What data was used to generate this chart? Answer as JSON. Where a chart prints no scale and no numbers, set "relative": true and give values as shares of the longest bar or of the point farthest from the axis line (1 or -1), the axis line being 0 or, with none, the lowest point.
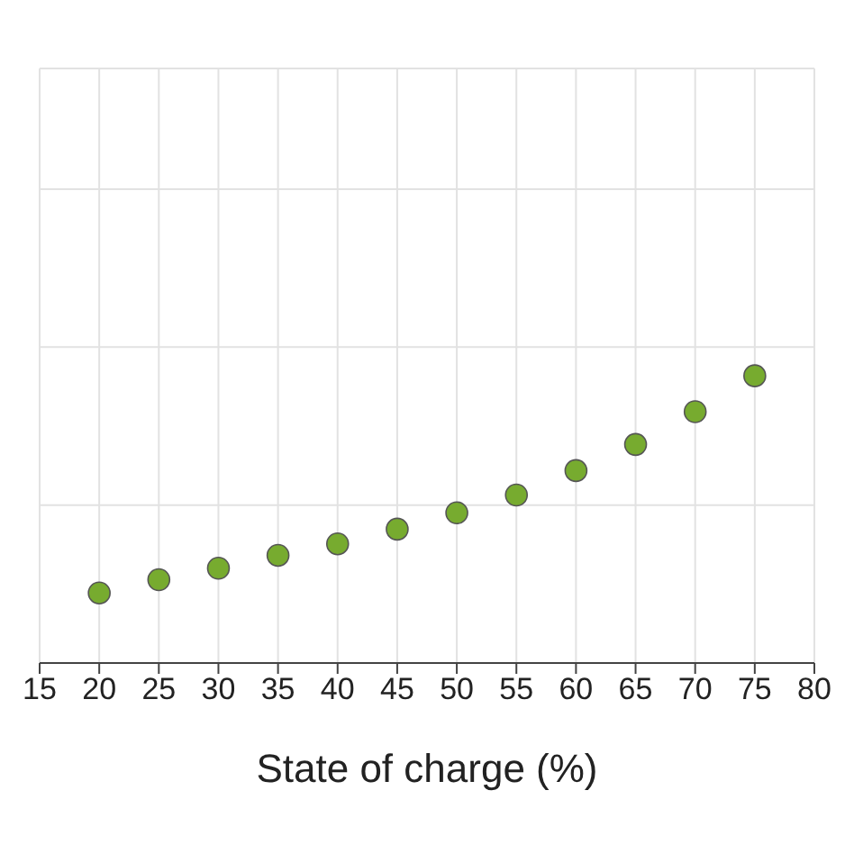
{
  "chart_data": {
    "type": "scatter",
    "xlabel": "State of charge (%)",
    "relative": true,
    "x": [
      20,
      25,
      30,
      35,
      40,
      45,
      50,
      55,
      60,
      65,
      70,
      75
    ],
    "series": [
      {
        "color": "#77ab2f",
        "values": [
          0.244,
          0.29,
          0.33,
          0.375,
          0.415,
          0.466,
          0.523,
          0.585,
          0.67,
          0.761,
          0.875,
          1
        ]
      }
    ],
    "xlim": [
      15,
      80
    ],
    "xticks": [
      15,
      20,
      25,
      30,
      35,
      40,
      45,
      50,
      55,
      60,
      65,
      70,
      75,
      80
    ],
    "grid": true,
    "marker": "circle"
  }
}
